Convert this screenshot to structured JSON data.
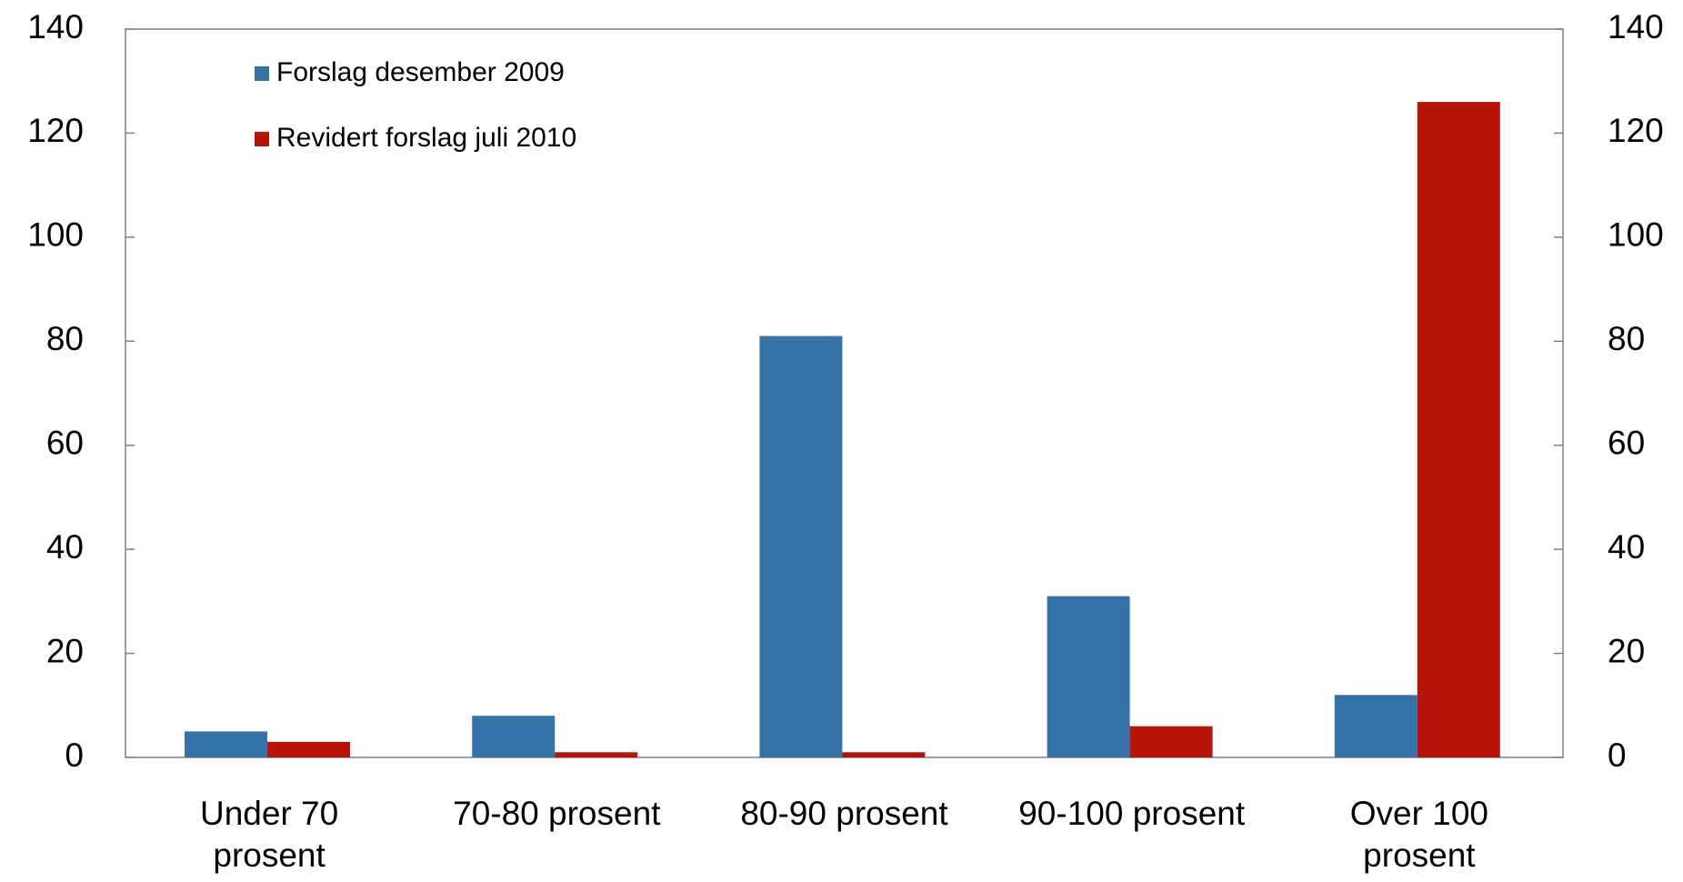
{
  "chart_data": {
    "type": "bar",
    "categories": [
      "Under 70 prosent",
      "70-80 prosent",
      "80-90 prosent",
      "90-100 prosent",
      "Over 100 prosent"
    ],
    "series": [
      {
        "name": "Forslag desember 2009",
        "color": "#3572a8",
        "values": [
          5,
          8,
          81,
          31,
          12
        ]
      },
      {
        "name": "Revidert forslag juli 2010",
        "color": "#b8150a",
        "values": [
          3,
          1,
          1,
          6,
          126
        ]
      }
    ],
    "ylim": [
      0,
      140
    ],
    "yticks": [
      0,
      20,
      40,
      60,
      80,
      100,
      120,
      140
    ],
    "y2lim": [
      0,
      140
    ],
    "y2ticks": [
      0,
      20,
      40,
      60,
      80,
      100,
      120,
      140
    ],
    "legend": "upper left",
    "grid": false
  }
}
